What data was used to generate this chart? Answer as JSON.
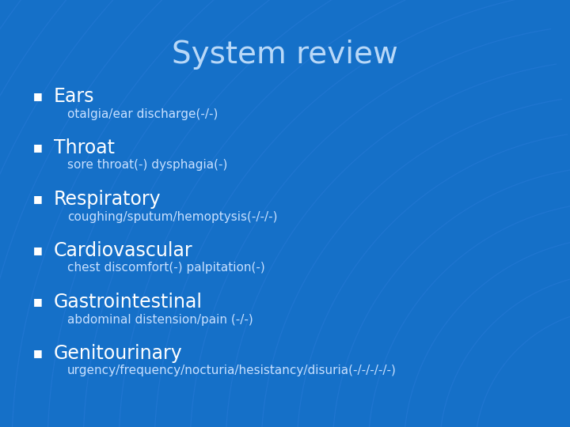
{
  "title": "System review",
  "background_color": "#1570C8",
  "title_color": "#B8D8F8",
  "title_fontsize": 28,
  "bullet_color": "#FFFFFF",
  "heading_color": "#FFFFFF",
  "subtext_color": "#C8E0FF",
  "heading_fontsize": 17,
  "subtext_fontsize": 11,
  "bullet_char": "■",
  "items": [
    {
      "heading": "Ears",
      "subtext": "otalgia/ear discharge(-/-)"
    },
    {
      "heading": "Throat",
      "subtext": "sore throat(-) dysphagia(-)"
    },
    {
      "heading": "Respiratory",
      "subtext": "coughing/sputum/hemoptysis(-/-/-)"
    },
    {
      "heading": "Cardiovascular",
      "subtext": "chest discomfort(-) palpitation(-)"
    },
    {
      "heading": "Gastrointestinal",
      "subtext": "abdominal distension/pain (-/-)"
    },
    {
      "heading": "Genitourinary",
      "subtext": "urgency/frequency/nocturia/hesistancy/disuria(-/-/-/-/-)"
    }
  ]
}
